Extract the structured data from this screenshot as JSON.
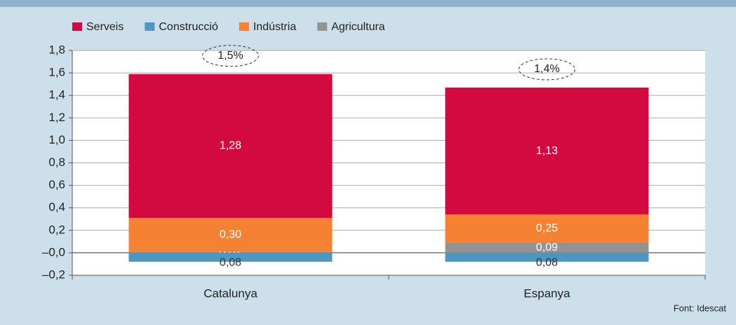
{
  "chart_data": {
    "type": "stacked_bar",
    "categories": [
      "Catalunya",
      "Espanya"
    ],
    "series": [
      {
        "name": "Serveis",
        "color": "#d20a3f",
        "values": [
          1.28,
          1.13
        ],
        "value_labels": [
          "1,28",
          "1,13"
        ]
      },
      {
        "name": "Construcció",
        "color": "#4f97c0",
        "values": [
          -0.08,
          -0.08
        ],
        "value_labels": [
          "0,08",
          "0,08"
        ]
      },
      {
        "name": "Indústria",
        "color": "#f58232",
        "values": [
          0.3,
          0.25
        ],
        "value_labels": [
          "0,30",
          "0,25"
        ]
      },
      {
        "name": "Agricultura",
        "color": "#939393",
        "values": [
          0.01,
          0.09
        ],
        "value_labels": [
          "0,01",
          "0,09"
        ]
      }
    ],
    "annotations": [
      "1,5%",
      "1,4%"
    ],
    "ylim": [
      -0.2,
      1.8
    ],
    "yticks": [
      {
        "value": -0.2,
        "label": "–0,2"
      },
      {
        "value": 0,
        "label": "–0,0"
      },
      {
        "value": 0.2,
        "label": "0,2"
      },
      {
        "value": 0.4,
        "label": "0,4"
      },
      {
        "value": 0.6,
        "label": "0,6"
      },
      {
        "value": 0.8,
        "label": "0,8"
      },
      {
        "value": 1.0,
        "label": "1,0"
      },
      {
        "value": 1.2,
        "label": "1,2"
      },
      {
        "value": 1.4,
        "label": "1,4"
      },
      {
        "value": 1.6,
        "label": "1,6"
      },
      {
        "value": 1.8,
        "label": "1,8"
      }
    ],
    "grid": true,
    "legend": "top",
    "source": "Font: Idescat"
  }
}
